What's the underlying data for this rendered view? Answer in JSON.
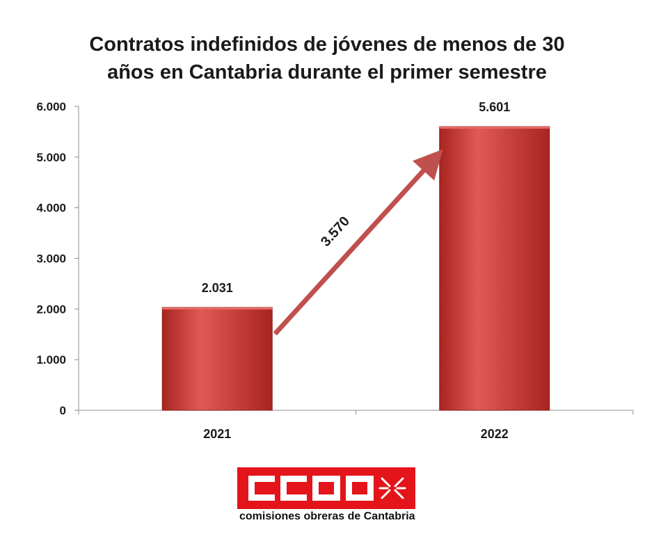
{
  "chart_data": {
    "type": "bar",
    "title_line1": "Contratos indefinidos de jóvenes de menos de 30",
    "title_line2": "años en Cantabria durante el primer semestre",
    "categories": [
      "2021",
      "2022"
    ],
    "values": [
      2031,
      5601
    ],
    "value_labels": [
      "2.031",
      "5.601"
    ],
    "ylim": [
      0,
      6000
    ],
    "yticks": [
      0,
      1000,
      2000,
      3000,
      4000,
      5000,
      6000
    ],
    "ytick_labels": [
      "0",
      "1.000",
      "2.000",
      "3.000",
      "4.000",
      "5.000",
      "6.000"
    ],
    "xlabel": "",
    "ylabel": "",
    "grid": false,
    "legend": "none",
    "annotation": {
      "text": "3.570",
      "from_category": "2021",
      "to_category": "2022"
    },
    "colors": {
      "bar": "#c9302c",
      "bar_light": "#e05a55",
      "bar_dark": "#a82420",
      "arrow": "#c0504d"
    }
  },
  "logo": {
    "brand": "CCOO",
    "caption": "comisiones obreras de Cantabria",
    "color": "#e3151a"
  }
}
